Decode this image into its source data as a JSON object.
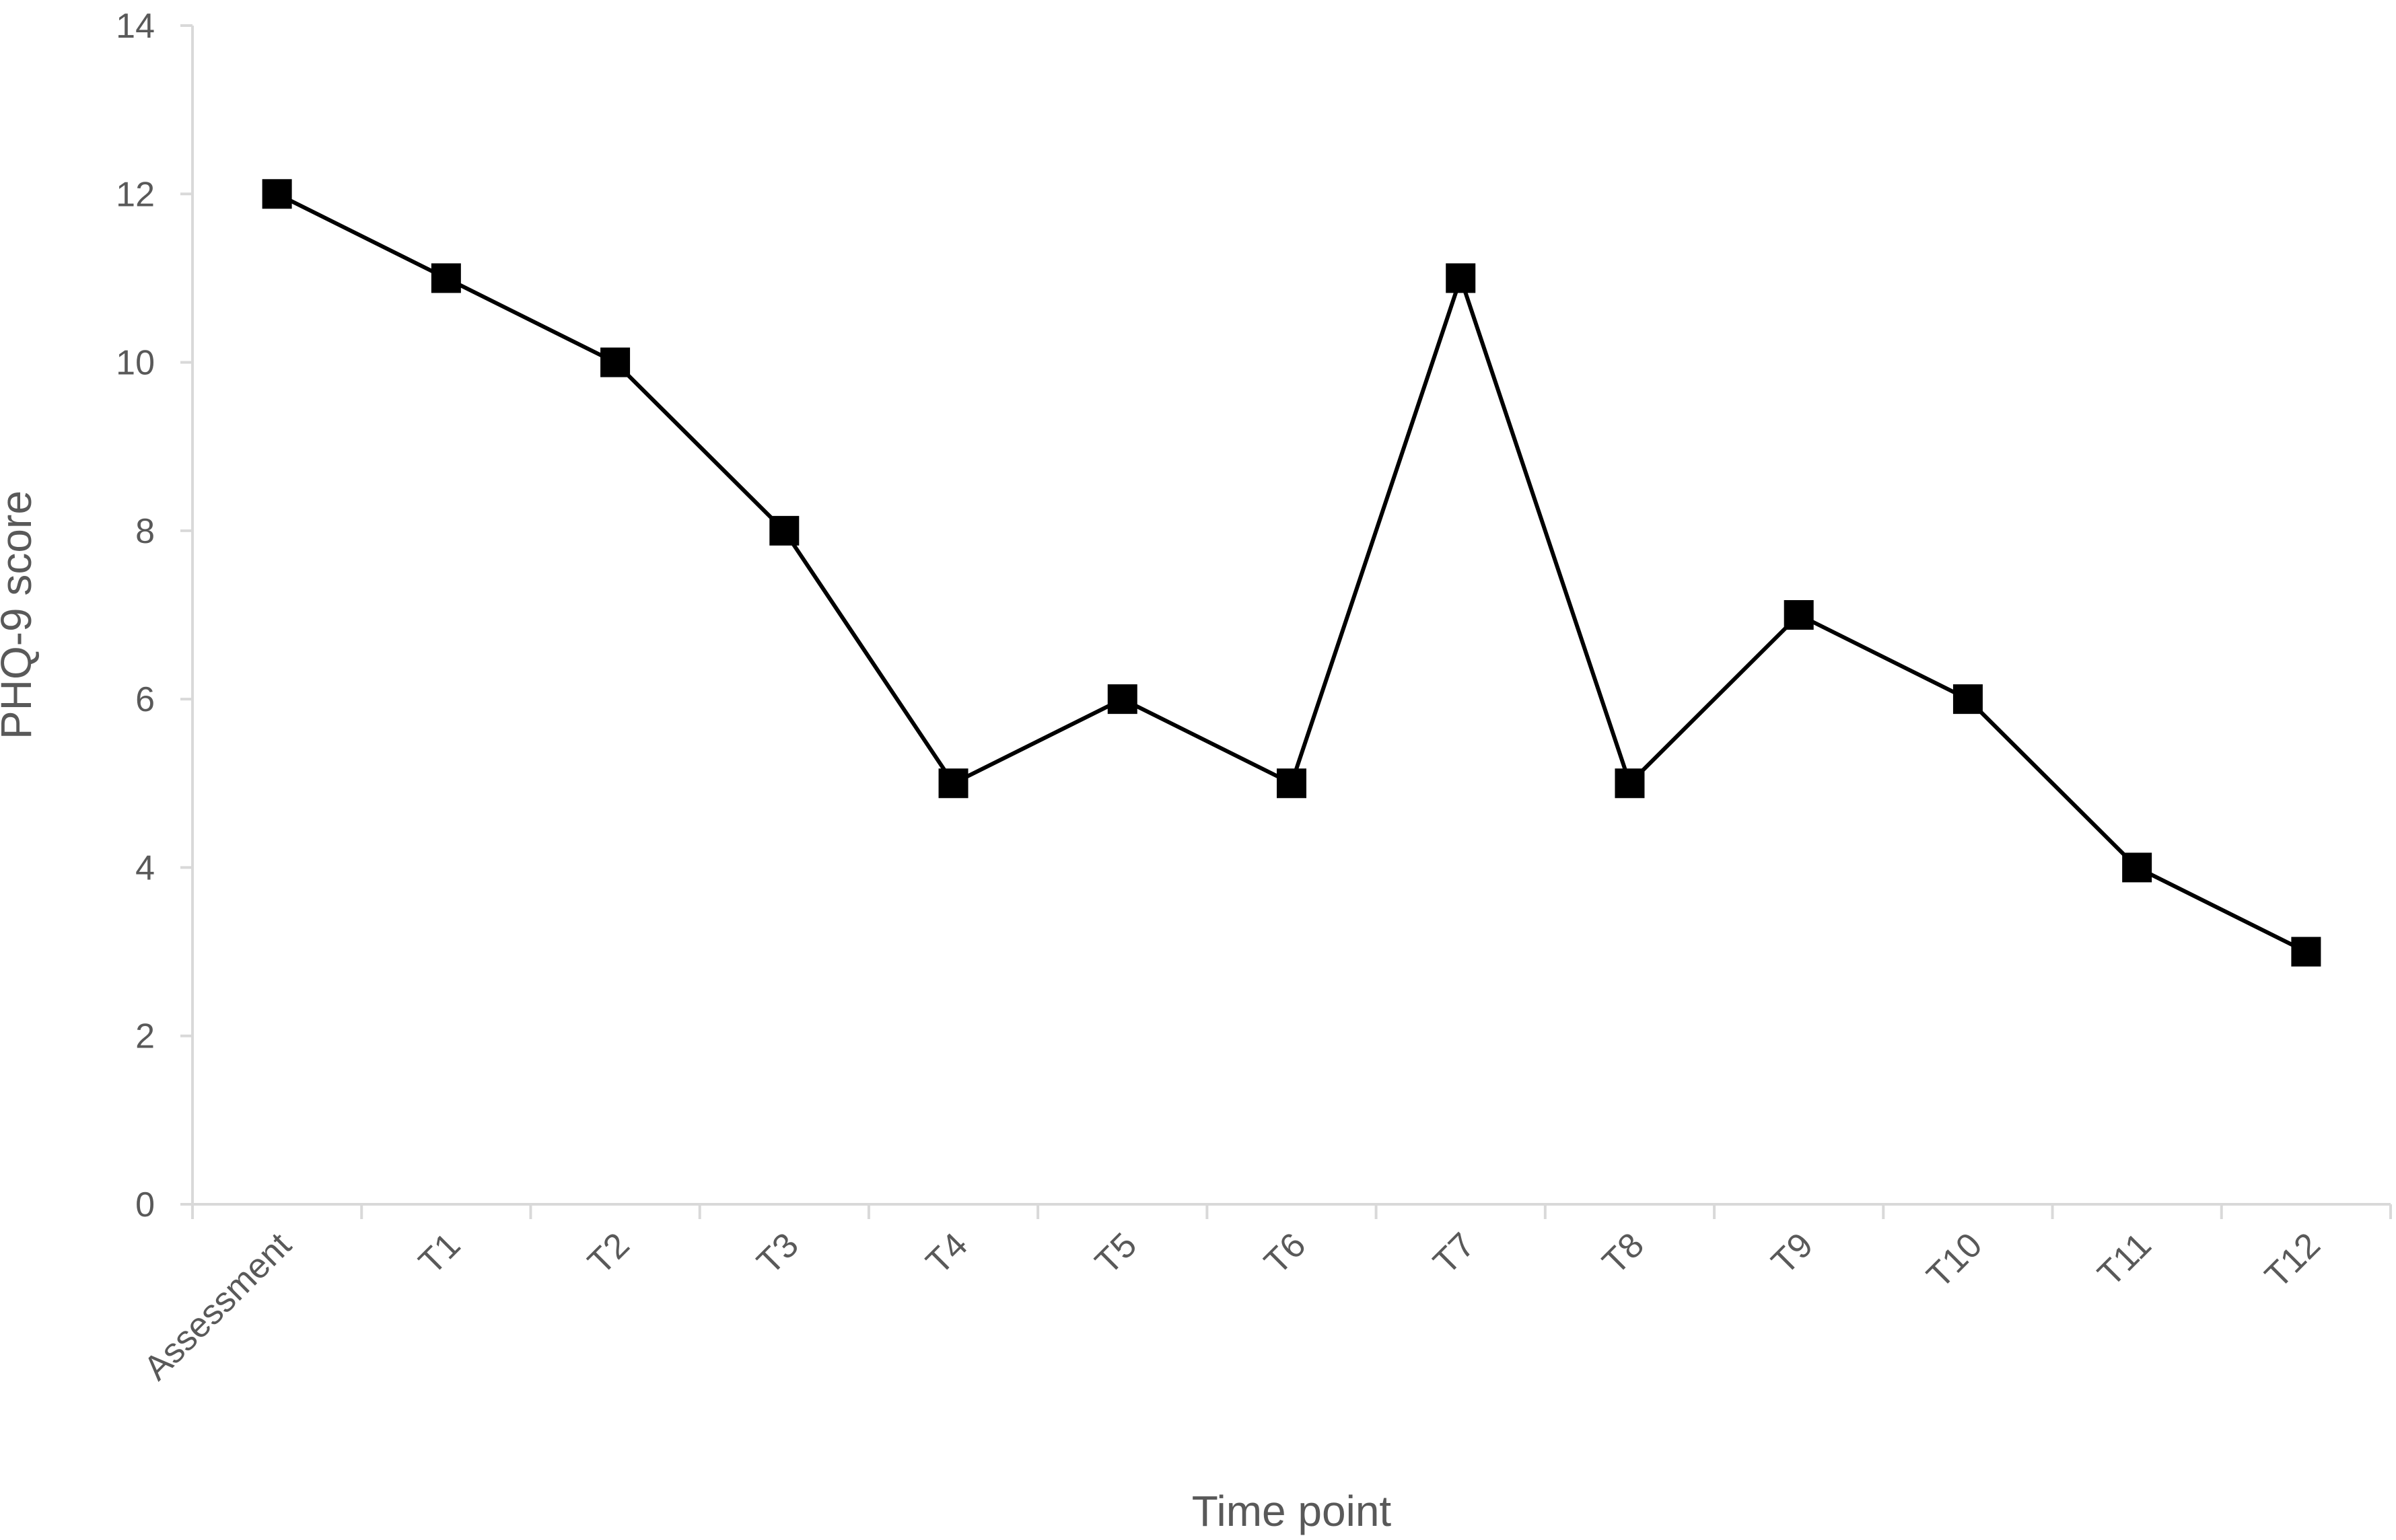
{
  "chart_data": {
    "type": "line",
    "categories": [
      "Assessment",
      "T1",
      "T2",
      "T3",
      "T4",
      "T5",
      "T6",
      "T7",
      "T8",
      "T9",
      "T10",
      "T11",
      "T12"
    ],
    "series": [
      {
        "values": [
          12,
          11,
          10,
          8,
          5,
          6,
          5,
          11,
          5,
          7,
          6,
          4,
          3
        ]
      }
    ],
    "xlabel": "Time point",
    "ylabel": "PHQ-9 score",
    "ylim": [
      0,
      14
    ],
    "yticks": [
      "0",
      "2",
      "4",
      "6",
      "8",
      "10",
      "12",
      "14"
    ],
    "marker": "square",
    "line_color": "#000000",
    "axis_color": "#d9d9d9",
    "text_color": "#595959",
    "grid": false,
    "legend": "none"
  }
}
